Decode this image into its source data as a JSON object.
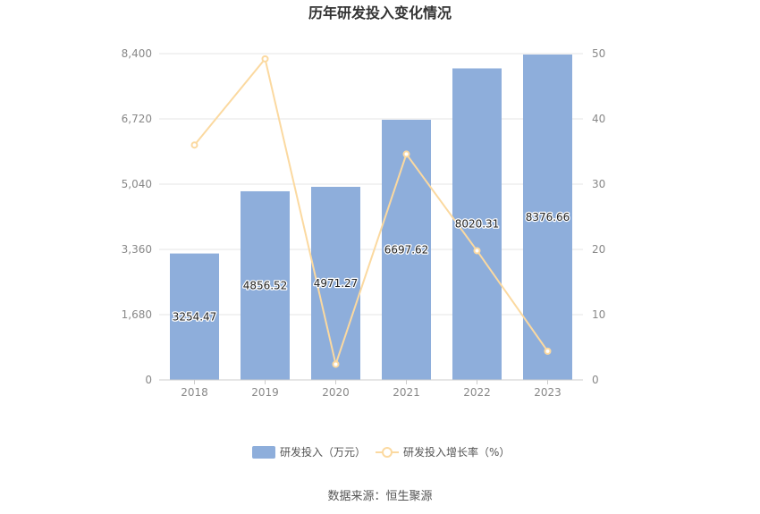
{
  "chart_data": {
    "type": "bar",
    "title": "历年研发投入变化情况",
    "categories": [
      "2018",
      "2019",
      "2020",
      "2021",
      "2022",
      "2023"
    ],
    "series": [
      {
        "name": "研发投入（万元）",
        "type": "bar",
        "axis": "left",
        "color": "#8eaedb",
        "values": [
          3254.47,
          4856.52,
          4971.27,
          6697.62,
          8020.31,
          8376.66
        ],
        "labels": [
          "3254.47",
          "4856.52",
          "4971.27",
          "6697.62",
          "8020.31",
          "8376.66"
        ]
      },
      {
        "name": "研发投入增长率（%）",
        "type": "line",
        "axis": "right",
        "color": "#fbd9a0",
        "values": [
          36.0,
          49.2,
          2.4,
          34.6,
          19.8,
          4.4
        ]
      }
    ],
    "y_left": {
      "ylim": [
        0,
        8400
      ],
      "ticks": [
        "0",
        "1,680",
        "3,360",
        "5,040",
        "6,720",
        "8,400"
      ]
    },
    "y_right": {
      "ylim": [
        0,
        50
      ],
      "ticks": [
        "0",
        "10",
        "20",
        "30",
        "40",
        "50"
      ]
    },
    "grid": true,
    "legend_position": "bottom",
    "source": "数据来源：恒生聚源"
  }
}
